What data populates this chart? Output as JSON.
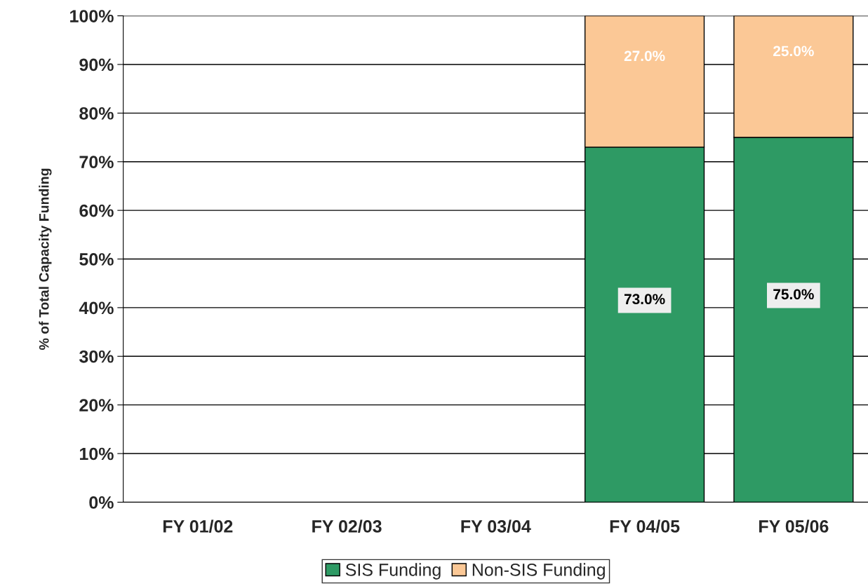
{
  "chart_data": {
    "type": "bar",
    "stacked": true,
    "ylabel": "% of Total Capacity Funding",
    "categories": [
      "FY 01/02",
      "FY 02/03",
      "FY 03/04",
      "FY 04/05",
      "FY 05/06"
    ],
    "series": [
      {
        "name": "SIS Funding",
        "color": "#2e9a64",
        "values": [
          null,
          null,
          null,
          73,
          75
        ],
        "value_labels": [
          null,
          null,
          null,
          "73.0%",
          "75.0%"
        ]
      },
      {
        "name": "Non-SIS Funding",
        "color": "#fbc896",
        "values": [
          null,
          null,
          null,
          27,
          25
        ],
        "value_labels": [
          null,
          null,
          null,
          "27.0%",
          "25.0%"
        ]
      }
    ],
    "ylim": [
      0,
      100
    ],
    "yticks": [
      {
        "value": 0,
        "label": "0%"
      },
      {
        "value": 10,
        "label": "10%"
      },
      {
        "value": 20,
        "label": "20%"
      },
      {
        "value": 30,
        "label": "30%"
      },
      {
        "value": 40,
        "label": "40%"
      },
      {
        "value": 50,
        "label": "50%"
      },
      {
        "value": 60,
        "label": "60%"
      },
      {
        "value": 70,
        "label": "70%"
      },
      {
        "value": 80,
        "label": "80%"
      },
      {
        "value": 90,
        "label": "90%"
      },
      {
        "value": 100,
        "label": "100%"
      }
    ],
    "grid": "y",
    "legend": "bottom"
  }
}
